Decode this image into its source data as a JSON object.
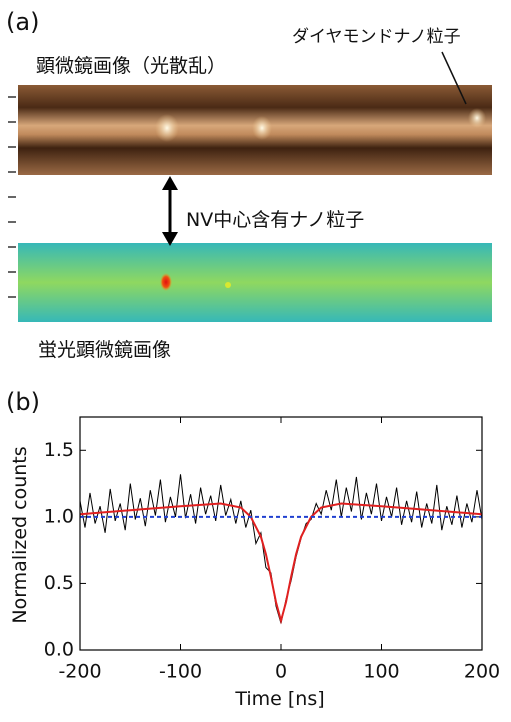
{
  "panel_a": {
    "label": "(a)",
    "top_caption": "顕微鏡画像（光散乱）",
    "particle_note": "ダイヤモンドナノ粒子",
    "nv_note": "NV中心含有ナノ粒子",
    "bottom_caption": "蛍光顕微鏡画像"
  },
  "chart_data": {
    "type": "line",
    "panel_label": "(b)",
    "x_label": "Time  [ns]",
    "y_label": "Normalized counts",
    "xlim": [
      -200,
      200
    ],
    "ylim": [
      0,
      1.75
    ],
    "xticks": [
      -200,
      -100,
      0,
      100,
      200
    ],
    "yticks": [
      {
        "value": 0,
        "label": "0.0"
      },
      {
        "value": 0.5,
        "label": "0.5"
      },
      {
        "value": 1,
        "label": "1.0"
      },
      {
        "value": 1.5,
        "label": "1.5"
      }
    ],
    "series": [
      {
        "color": "#000000",
        "x": [
          -200,
          -195,
          -190,
          -185,
          -180,
          -175,
          -170,
          -165,
          -160,
          -155,
          -150,
          -145,
          -140,
          -135,
          -130,
          -125,
          -120,
          -115,
          -110,
          -105,
          -100,
          -95,
          -90,
          -85,
          -80,
          -75,
          -70,
          -65,
          -60,
          -55,
          -50,
          -45,
          -40,
          -35,
          -30,
          -25,
          -20,
          -15,
          -10,
          -5,
          0,
          5,
          10,
          15,
          20,
          25,
          30,
          35,
          40,
          45,
          50,
          55,
          60,
          65,
          70,
          75,
          80,
          85,
          90,
          95,
          100,
          105,
          110,
          115,
          120,
          125,
          130,
          135,
          140,
          145,
          150,
          155,
          160,
          165,
          170,
          175,
          180,
          185,
          190,
          195,
          200
        ],
        "values": [
          1.12,
          0.92,
          1.18,
          0.95,
          1.08,
          0.88,
          1.21,
          0.97,
          1.1,
          0.9,
          1.25,
          0.98,
          1.14,
          0.93,
          1.2,
          1.01,
          1.28,
          0.96,
          1.15,
          1.0,
          1.32,
          0.99,
          1.17,
          0.95,
          1.22,
          1.02,
          1.16,
          0.97,
          1.24,
          1.01,
          1.13,
          0.95,
          1.12,
          0.92,
          1.05,
          0.8,
          0.88,
          0.62,
          0.58,
          0.33,
          0.2,
          0.38,
          0.52,
          0.7,
          0.84,
          0.95,
          0.98,
          1.1,
          1.02,
          1.2,
          1.05,
          1.28,
          1.0,
          1.22,
          1.04,
          1.3,
          0.98,
          1.18,
          1.02,
          1.25,
          0.97,
          1.15,
          1.0,
          1.22,
          0.94,
          1.12,
          0.96,
          1.19,
          0.92,
          1.1,
          0.95,
          1.24,
          0.9,
          1.08,
          0.94,
          1.16,
          0.92,
          1.1,
          0.96,
          1.2,
          0.98
        ]
      },
      {
        "color": "#e02020",
        "x": [
          -200,
          -150,
          -100,
          -80,
          -60,
          -40,
          -30,
          -20,
          -15,
          -10,
          -5,
          0,
          5,
          10,
          15,
          20,
          30,
          40,
          60,
          80,
          100,
          150,
          200
        ],
        "values": [
          1.02,
          1.05,
          1.08,
          1.09,
          1.1,
          1.07,
          1.0,
          0.85,
          0.72,
          0.55,
          0.36,
          0.22,
          0.36,
          0.55,
          0.72,
          0.85,
          1.0,
          1.07,
          1.1,
          1.09,
          1.08,
          1.05,
          1.02
        ]
      },
      {
        "color": "#2040d0",
        "dashed": true,
        "x": [
          -200,
          200
        ],
        "values": [
          1,
          1
        ]
      }
    ]
  }
}
